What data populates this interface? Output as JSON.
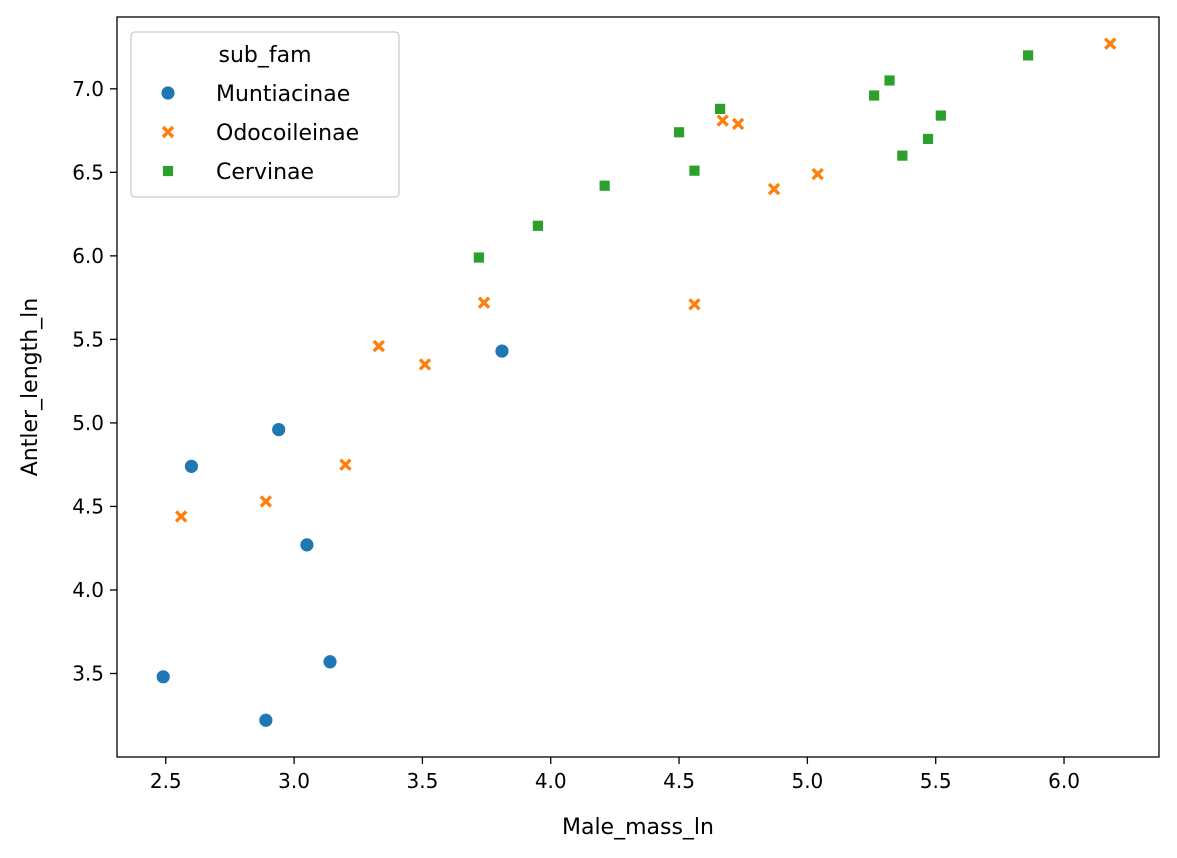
{
  "chart_data": {
    "type": "scatter",
    "title": "",
    "xlabel": "Male_mass_ln",
    "ylabel": "Antler_length_ln",
    "xlim": [
      2.31,
      6.37
    ],
    "ylim": [
      3.0,
      7.43
    ],
    "xticks": [
      2.5,
      3.0,
      3.5,
      4.0,
      4.5,
      5.0,
      5.5,
      6.0
    ],
    "yticks": [
      3.5,
      4.0,
      4.5,
      5.0,
      5.5,
      6.0,
      6.5,
      7.0
    ],
    "legend": {
      "title": "sub_fam",
      "position": "top-left"
    },
    "series": [
      {
        "name": "Muntiacinae",
        "marker": "circle",
        "color": "#1f77b4",
        "points": [
          [
            2.49,
            3.48
          ],
          [
            2.6,
            4.74
          ],
          [
            2.89,
            3.22
          ],
          [
            2.94,
            4.96
          ],
          [
            3.05,
            4.27
          ],
          [
            3.14,
            3.57
          ],
          [
            3.81,
            5.43
          ]
        ]
      },
      {
        "name": "Odocoileinae",
        "marker": "x",
        "color": "#ff7f0e",
        "points": [
          [
            2.56,
            4.44
          ],
          [
            2.89,
            4.53
          ],
          [
            3.2,
            4.75
          ],
          [
            3.33,
            5.46
          ],
          [
            3.51,
            5.35
          ],
          [
            3.74,
            5.72
          ],
          [
            4.56,
            5.71
          ],
          [
            4.67,
            6.81
          ],
          [
            4.73,
            6.79
          ],
          [
            4.87,
            6.4
          ],
          [
            5.04,
            6.49
          ],
          [
            6.18,
            7.27
          ]
        ]
      },
      {
        "name": "Cervinae",
        "marker": "square",
        "color": "#2ca02c",
        "points": [
          [
            3.72,
            5.99
          ],
          [
            3.95,
            6.18
          ],
          [
            4.21,
            6.42
          ],
          [
            4.5,
            6.74
          ],
          [
            4.56,
            6.51
          ],
          [
            4.66,
            6.88
          ],
          [
            5.26,
            6.96
          ],
          [
            5.32,
            7.05
          ],
          [
            5.37,
            6.6
          ],
          [
            5.47,
            6.7
          ],
          [
            5.52,
            6.84
          ],
          [
            5.86,
            7.2
          ]
        ]
      }
    ]
  }
}
